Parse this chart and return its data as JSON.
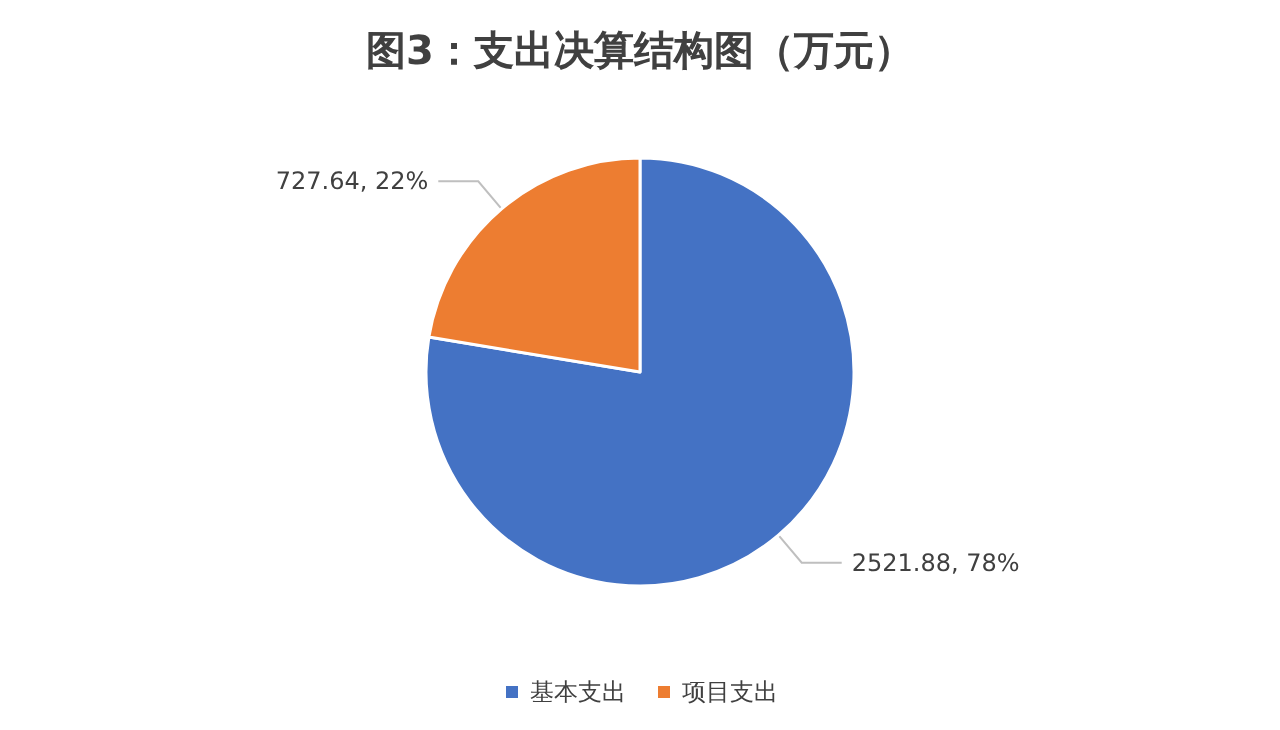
{
  "chart_data": {
    "type": "pie",
    "title": "图3：支出决算结构图（万元）",
    "categories": [
      "基本支出",
      "项目支出"
    ],
    "values": [
      2521.88,
      727.64
    ],
    "colors": [
      "#4472c4",
      "#ed7d31"
    ],
    "value_labels": [
      "2521.88, 78%",
      "727.64, 22%"
    ],
    "legend": "bottom"
  }
}
